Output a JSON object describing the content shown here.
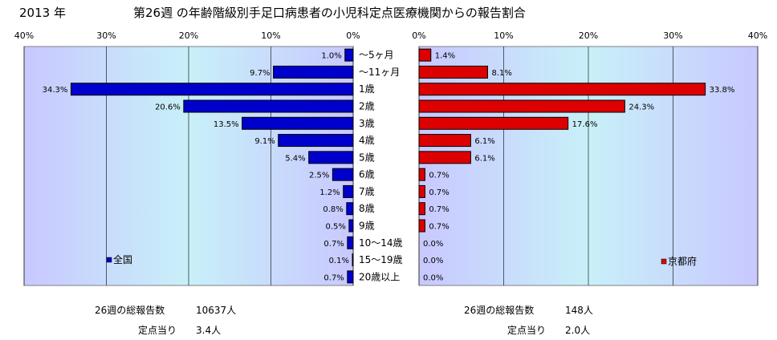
{
  "header": {
    "year": "2013 年",
    "title": "第26週 の年齢階級別手足口病患者の小児科定点医療機関からの報告割合"
  },
  "chart_data": {
    "type": "bar",
    "orientation": "horizontal",
    "categories": [
      "～5ヶ月",
      "～11ヶ月",
      "1歳",
      "2歳",
      "3歳",
      "4歳",
      "5歳",
      "6歳",
      "7歳",
      "8歳",
      "9歳",
      "10～14歳",
      "15～19歳",
      "20歳以上"
    ],
    "ticks": [
      "40%",
      "30%",
      "20%",
      "10%",
      "0%"
    ],
    "ticks_right": [
      "0%",
      "10%",
      "20%",
      "30%",
      "40%"
    ],
    "xlim": [
      0,
      40
    ],
    "grid": true,
    "series": [
      {
        "name": "全国",
        "side": "left",
        "color": "#0000cc",
        "values": [
          1.0,
          9.7,
          34.3,
          20.6,
          13.5,
          9.1,
          5.4,
          2.5,
          1.2,
          0.8,
          0.5,
          0.7,
          0.1,
          0.7
        ],
        "labels": [
          "1.0%",
          "9.7%",
          "34.3%",
          "20.6%",
          "13.5%",
          "9.1%",
          "5.4%",
          "2.5%",
          "1.2%",
          "0.8%",
          "0.5%",
          "0.7%",
          "0.1%",
          "0.7%"
        ]
      },
      {
        "name": "京都府",
        "side": "right",
        "color": "#dd0000",
        "values": [
          1.4,
          8.1,
          33.8,
          24.3,
          17.6,
          6.1,
          6.1,
          0.7,
          0.7,
          0.7,
          0.7,
          0.0,
          0.0,
          0.0
        ],
        "labels": [
          "1.4%",
          "8.1%",
          "33.8%",
          "24.3%",
          "17.6%",
          "6.1%",
          "6.1%",
          "0.7%",
          "0.7%",
          "0.7%",
          "0.7%",
          "0.0%",
          "0.0%",
          "0.0%"
        ]
      }
    ]
  },
  "footer": {
    "national_reports_label": "26週の総報告数",
    "national_reports_value": "10637人",
    "national_per_site_label": "定点当り",
    "national_per_site_value": "3.4人",
    "kyoto_reports_label": "26週の総報告数",
    "kyoto_reports_value": "148人",
    "kyoto_per_site_label": "定点当り",
    "kyoto_per_site_value": "2.0人"
  }
}
